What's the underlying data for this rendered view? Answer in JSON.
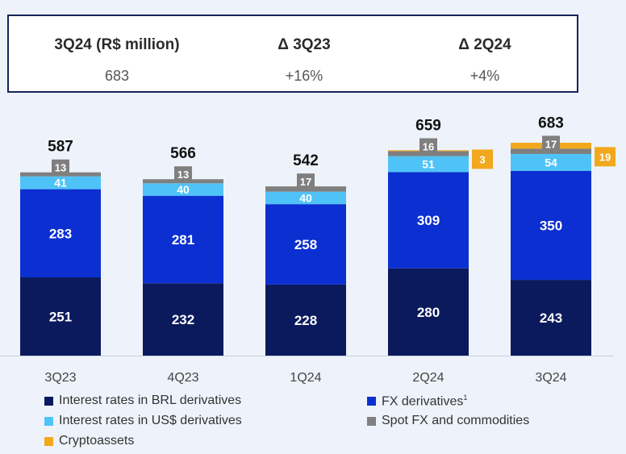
{
  "kpis": [
    {
      "label": "3Q24 (R$ million)",
      "value": "683"
    },
    {
      "label": "Δ 3Q23",
      "value": "+16%"
    },
    {
      "label": "Δ 2Q24",
      "value": "+4%"
    }
  ],
  "chart_data": {
    "type": "bar",
    "stacked": true,
    "categories": [
      "3Q23",
      "4Q23",
      "1Q24",
      "2Q24",
      "3Q24"
    ],
    "series": [
      {
        "name": "Interest rates in BRL derivatives",
        "color": "#0b1a5c",
        "values": [
          251,
          232,
          228,
          280,
          243
        ]
      },
      {
        "name": "FX derivatives",
        "color": "#0b2fd1",
        "values": [
          283,
          281,
          258,
          309,
          350
        ]
      },
      {
        "name": "Interest rates in US$ derivatives",
        "color": "#4fc3f7",
        "values": [
          41,
          40,
          40,
          51,
          54
        ]
      },
      {
        "name": "Spot FX and commodities",
        "color": "#7f7f7f",
        "values": [
          13,
          13,
          17,
          16,
          17
        ]
      },
      {
        "name": "Cryptoassets",
        "color": "#f2a81d",
        "values": [
          0,
          0,
          0,
          3,
          19
        ]
      }
    ],
    "totals": [
      587,
      566,
      542,
      659,
      683
    ],
    "legend_position": "bottom",
    "grid": false
  },
  "legend": {
    "fx_footnote": "1"
  }
}
